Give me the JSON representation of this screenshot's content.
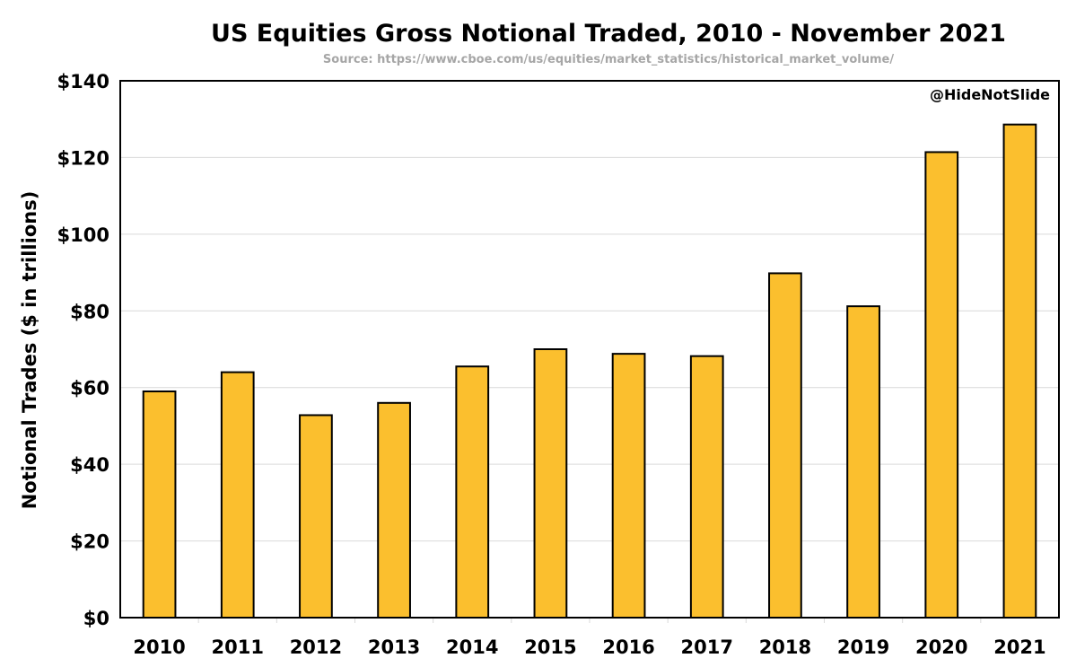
{
  "chart_data": {
    "type": "bar",
    "title": "US Equities Gross Notional Traded, 2010 - November 2021",
    "subtitle": "Source: https://www.cboe.com/us/equities/market_statistics/historical_market_volume/",
    "ylabel": "Notional Trades ($ in trillions)",
    "xlabel": "",
    "annotation": "@HideNotSlide",
    "categories": [
      "2010",
      "2011",
      "2012",
      "2013",
      "2014",
      "2015",
      "2016",
      "2017",
      "2018",
      "2019",
      "2020",
      "2021"
    ],
    "values": [
      59,
      64,
      52.8,
      56,
      65.5,
      70,
      68.8,
      68.2,
      89.8,
      81.2,
      121.4,
      128.6
    ],
    "ylim": [
      0,
      140
    ],
    "yticks": [
      0,
      20,
      40,
      60,
      80,
      100,
      120,
      140
    ],
    "ytick_labels": [
      "$0",
      "$20",
      "$40",
      "$60",
      "$80",
      "$100",
      "$120",
      "$140"
    ],
    "bar_color": "#FBBF2E",
    "bar_edge_color": "#000000",
    "grid": true,
    "legend": "none"
  }
}
